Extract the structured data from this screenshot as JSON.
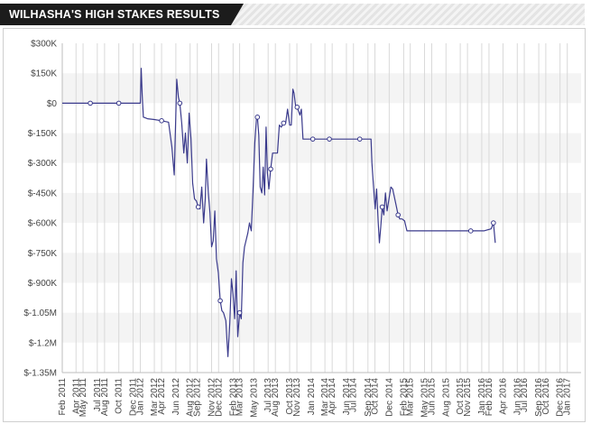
{
  "header": {
    "title": "WILHASHA'S HIGH STAKES RESULTS"
  },
  "colors": {
    "line": "#3a3a8c",
    "marker_fill": "#ffffff",
    "band_alt": "#f4f4f4",
    "grid_vertical": "#d9d9d9",
    "banner_dark": "#1c1c1c"
  },
  "chart_data": {
    "type": "line",
    "title": "WILHASHA'S HIGH STAKES RESULTS",
    "xlabel": "",
    "ylabel": "",
    "xlim": [
      "2011-02-01",
      "2017-03-01"
    ],
    "ylim": [
      -1350000,
      300000
    ],
    "grid": true,
    "y_ticks": [
      300000,
      150000,
      0,
      -150000,
      -300000,
      -450000,
      -600000,
      -750000,
      -900000,
      -1050000,
      -1200000,
      -1350000
    ],
    "y_tick_labels": [
      "$300K",
      "$150K",
      "$0",
      "$-150K",
      "$-300K",
      "$-450K",
      "$-600K",
      "$-750K",
      "$-900K",
      "$-1.05M",
      "$-1.2M",
      "$-1.35M"
    ],
    "x_ticks": [
      "2011-02-01",
      "2011-04-01",
      "2011-05-01",
      "2011-07-01",
      "2011-08-01",
      "2011-10-01",
      "2011-12-01",
      "2012-01-01",
      "2012-03-01",
      "2012-04-01",
      "2012-06-01",
      "2012-08-01",
      "2012-09-01",
      "2012-11-01",
      "2012-12-01",
      "2013-02-01",
      "2013-03-01",
      "2013-05-01",
      "2013-07-01",
      "2013-08-01",
      "2013-10-01",
      "2013-11-01",
      "2014-01-01",
      "2014-03-01",
      "2014-04-01",
      "2014-06-01",
      "2014-07-01",
      "2014-09-01",
      "2014-10-01",
      "2014-12-01",
      "2015-02-01",
      "2015-03-01",
      "2015-05-01",
      "2015-06-01",
      "2015-08-01",
      "2015-10-01",
      "2015-11-01",
      "2016-01-01",
      "2016-02-01",
      "2016-04-01",
      "2016-06-01",
      "2016-07-01",
      "2016-09-01",
      "2016-10-01",
      "2016-12-01",
      "2017-01-01"
    ],
    "x_tick_labels": [
      "Feb 2011",
      "Apr 2011",
      "May 2011",
      "Jul 2011",
      "Aug 2011",
      "Oct 2011",
      "Dec 2011",
      "Jan 2012",
      "Mar 2012",
      "Apr 2012",
      "Jun 2012",
      "Aug 2012",
      "Sep 2012",
      "Nov 2012",
      "Dec 2012",
      "Feb 2013",
      "Mar 2013",
      "May 2013",
      "Jul 2013",
      "Aug 2013",
      "Oct 2013",
      "Nov 2013",
      "Jan 2014",
      "Mar 2014",
      "Apr 2014",
      "Jun 2014",
      "Jul 2014",
      "Sep 2014",
      "Oct 2014",
      "Dec 2014",
      "Feb 2015",
      "Mar 2015",
      "May 2015",
      "Jun 2015",
      "Aug 2015",
      "Oct 2015",
      "Nov 2015",
      "Jan 2016",
      "Feb 2016",
      "Apr 2016",
      "Jun 2016",
      "Jul 2016",
      "Sep 2016",
      "Oct 2016",
      "Dec 2016",
      "Jan 2017"
    ],
    "series": [
      {
        "points": [
          [
            "2011-02-01",
            0
          ],
          [
            "2011-06-01",
            0,
            "m"
          ],
          [
            "2011-10-01",
            0,
            "m"
          ],
          [
            "2012-01-01",
            0
          ],
          [
            "2012-01-05",
            175000
          ],
          [
            "2012-01-09",
            40000
          ],
          [
            "2012-01-14",
            -70000
          ],
          [
            "2012-02-01",
            -78000
          ],
          [
            "2012-03-01",
            -82000
          ],
          [
            "2012-04-01",
            -88000,
            "m"
          ],
          [
            "2012-05-01",
            -95000
          ],
          [
            "2012-05-15",
            -220000
          ],
          [
            "2012-05-25",
            -360000
          ],
          [
            "2012-06-05",
            120000
          ],
          [
            "2012-06-12",
            30000
          ],
          [
            "2012-06-18",
            0,
            "m"
          ],
          [
            "2012-06-26",
            -100000
          ],
          [
            "2012-07-05",
            -250000
          ],
          [
            "2012-07-12",
            -150000
          ],
          [
            "2012-07-20",
            -300000
          ],
          [
            "2012-07-28",
            -50000
          ],
          [
            "2012-08-05",
            -180000
          ],
          [
            "2012-08-12",
            -400000
          ],
          [
            "2012-08-20",
            -480000
          ],
          [
            "2012-08-28",
            -490000
          ],
          [
            "2012-09-05",
            -520000,
            "m"
          ],
          [
            "2012-09-12",
            -530000
          ],
          [
            "2012-09-20",
            -420000
          ],
          [
            "2012-09-28",
            -600000
          ],
          [
            "2012-10-05",
            -480000
          ],
          [
            "2012-10-10",
            -280000
          ],
          [
            "2012-10-18",
            -450000
          ],
          [
            "2012-10-25",
            -550000
          ],
          [
            "2012-11-01",
            -720000
          ],
          [
            "2012-11-08",
            -690000
          ],
          [
            "2012-11-15",
            -540000
          ],
          [
            "2012-11-22",
            -780000
          ],
          [
            "2012-11-30",
            -850000
          ],
          [
            "2012-12-08",
            -990000,
            "m"
          ],
          [
            "2012-12-15",
            -1040000
          ],
          [
            "2012-12-22",
            -1050000
          ],
          [
            "2013-01-01",
            -1090000
          ],
          [
            "2013-01-10",
            -1270000
          ],
          [
            "2013-01-18",
            -1100000
          ],
          [
            "2013-01-25",
            -880000
          ],
          [
            "2013-02-01",
            -960000
          ],
          [
            "2013-02-08",
            -1080000
          ],
          [
            "2013-02-14",
            -840000
          ],
          [
            "2013-02-21",
            -1170000
          ],
          [
            "2013-03-01",
            -1050000,
            "m"
          ],
          [
            "2013-03-08",
            -1080000
          ],
          [
            "2013-03-15",
            -800000
          ],
          [
            "2013-03-22",
            -720000
          ],
          [
            "2013-03-28",
            -690000
          ],
          [
            "2013-04-05",
            -650000
          ],
          [
            "2013-04-12",
            -600000
          ],
          [
            "2013-04-20",
            -640000
          ],
          [
            "2013-04-27",
            -440000
          ],
          [
            "2013-05-05",
            -200000
          ],
          [
            "2013-05-12",
            -80000
          ],
          [
            "2013-05-16",
            -70000,
            "m"
          ],
          [
            "2013-05-22",
            -160000
          ],
          [
            "2013-05-28",
            -420000
          ],
          [
            "2013-06-04",
            -450000
          ],
          [
            "2013-06-10",
            -320000
          ],
          [
            "2013-06-16",
            -460000
          ],
          [
            "2013-06-22",
            -120000
          ],
          [
            "2013-06-28",
            -350000
          ],
          [
            "2013-07-04",
            -430000
          ],
          [
            "2013-07-12",
            -330000,
            "m"
          ],
          [
            "2013-07-20",
            -250000
          ],
          [
            "2013-08-01",
            -250000
          ],
          [
            "2013-08-10",
            -250000
          ],
          [
            "2013-08-18",
            -110000
          ],
          [
            "2013-08-26",
            -120000
          ],
          [
            "2013-09-05",
            -100000,
            "m"
          ],
          [
            "2013-09-14",
            -100000
          ],
          [
            "2013-09-22",
            -30000
          ],
          [
            "2013-10-01",
            -110000
          ],
          [
            "2013-10-08",
            -110000
          ],
          [
            "2013-10-15",
            70000
          ],
          [
            "2013-10-20",
            50000
          ],
          [
            "2013-10-26",
            -10000
          ],
          [
            "2013-11-02",
            -20000,
            "m"
          ],
          [
            "2013-11-08",
            -40000
          ],
          [
            "2013-11-14",
            -60000
          ],
          [
            "2013-11-20",
            -30000
          ],
          [
            "2013-11-27",
            -180000
          ],
          [
            "2013-12-06",
            -180000
          ],
          [
            "2014-01-08",
            -180000,
            "m"
          ],
          [
            "2014-02-15",
            -180000
          ],
          [
            "2014-03-20",
            -180000,
            "m"
          ],
          [
            "2014-04-25",
            -180000
          ],
          [
            "2014-05-30",
            -180000
          ],
          [
            "2014-06-25",
            -180000
          ],
          [
            "2014-07-28",
            -180000,
            "m"
          ],
          [
            "2014-09-10",
            -180000
          ],
          [
            "2014-09-14",
            -180000
          ],
          [
            "2014-09-18",
            -300000
          ],
          [
            "2014-09-25",
            -420000
          ],
          [
            "2014-10-02",
            -530000
          ],
          [
            "2014-10-08",
            -430000
          ],
          [
            "2014-10-15",
            -600000
          ],
          [
            "2014-10-20",
            -700000
          ],
          [
            "2014-10-26",
            -620000
          ],
          [
            "2014-11-01",
            -520000,
            "m"
          ],
          [
            "2014-11-08",
            -560000
          ],
          [
            "2014-11-15",
            -450000
          ],
          [
            "2014-11-22",
            -540000
          ],
          [
            "2014-11-30",
            -480000
          ],
          [
            "2014-12-08",
            -420000
          ],
          [
            "2014-12-16",
            -430000
          ],
          [
            "2015-01-01",
            -520000
          ],
          [
            "2015-01-08",
            -560000,
            "m"
          ],
          [
            "2015-01-15",
            -580000
          ],
          [
            "2015-01-25",
            -580000
          ],
          [
            "2015-02-05",
            -590000
          ],
          [
            "2015-02-15",
            -640000
          ],
          [
            "2015-03-01",
            -640000
          ],
          [
            "2015-06-01",
            -640000
          ],
          [
            "2015-09-01",
            -640000
          ],
          [
            "2015-11-15",
            -640000,
            "m"
          ],
          [
            "2016-01-10",
            -640000
          ],
          [
            "2016-02-10",
            -630000
          ],
          [
            "2016-02-20",
            -600000,
            "m"
          ],
          [
            "2016-02-28",
            -700000
          ]
        ]
      }
    ]
  }
}
